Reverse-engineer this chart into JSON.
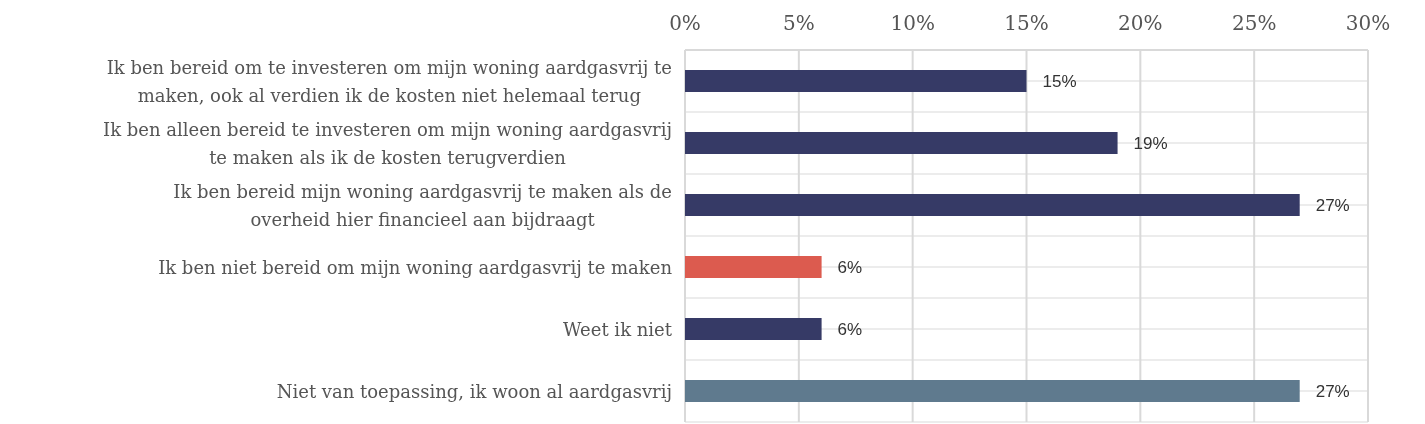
{
  "chart_data": {
    "type": "bar",
    "orientation": "horizontal",
    "categories": [
      "Ik ben bereid om te investeren om mijn woning aardgasvrij te maken, ook al verdien ik de kosten niet helemaal terug",
      "Ik ben alleen bereid te investeren om mijn woning aardgasvrij te maken als ik de kosten terugverdien",
      "Ik ben bereid mijn woning aardgasvrij te maken als de overheid hier financieel aan bijdraagt",
      "Ik ben niet bereid om mijn woning aardgasvrij te maken",
      "Weet ik niet",
      "Niet van toepassing, ik woon al aardgasvrij"
    ],
    "values": [
      15,
      19,
      27,
      6,
      6,
      27
    ],
    "colors": [
      "#363a66",
      "#363a66",
      "#363a66",
      "#dc5b4f",
      "#363a66",
      "#5f7a8e"
    ],
    "value_labels": [
      "15%",
      "19%",
      "27%",
      "6%",
      "6%",
      "27%"
    ],
    "xlim": [
      0,
      30
    ],
    "xticks": [
      {
        "value": 0,
        "label": "0%"
      },
      {
        "value": 5,
        "label": "5%"
      },
      {
        "value": 10,
        "label": "10%"
      },
      {
        "value": 15,
        "label": "15%"
      },
      {
        "value": 20,
        "label": "20%"
      },
      {
        "value": 25,
        "label": "25%"
      },
      {
        "value": 30,
        "label": "30%"
      }
    ],
    "grid": true
  }
}
